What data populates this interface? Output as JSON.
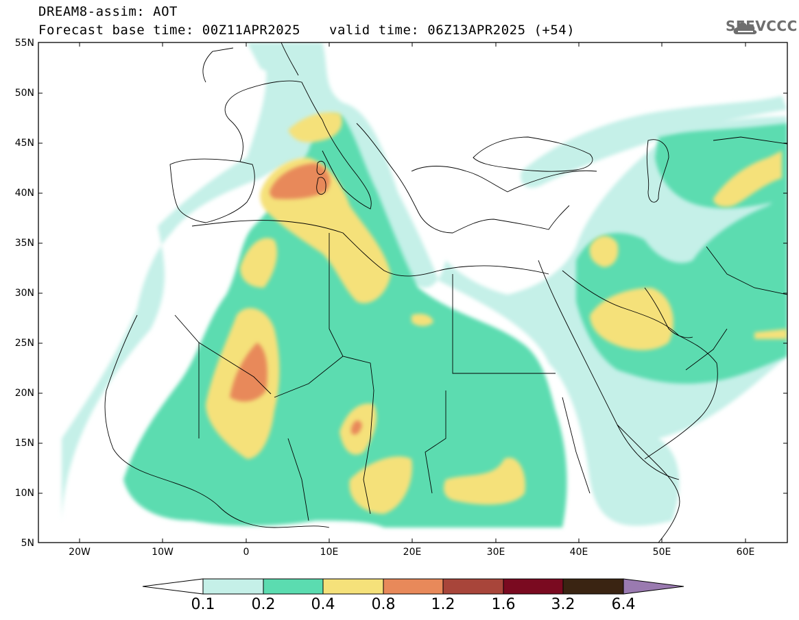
{
  "header": {
    "title": "DREAM8-assim: AOT",
    "base_time": "Forecast base time: 00Z11APR2025",
    "valid_time": "valid time: 06Z13APR2025 (+54)"
  },
  "logo": {
    "text": "SEEVCCC",
    "icon": "cloud-icon",
    "color": "#6e6e6e"
  },
  "map": {
    "lat_labels": [
      "55N",
      "50N",
      "45N",
      "40N",
      "35N",
      "30N",
      "25N",
      "20N",
      "15N",
      "10N",
      "5N"
    ],
    "lon_labels": [
      "20W",
      "10W",
      "0",
      "10E",
      "20E",
      "30E",
      "40E",
      "50E",
      "60E"
    ]
  },
  "colorbar": {
    "labels": [
      "0.1",
      "0.2",
      "0.4",
      "0.8",
      "1.2",
      "1.6",
      "3.2",
      "6.4"
    ],
    "colors": [
      "#ffffff",
      "#c5f0e8",
      "#5bdcb0",
      "#f5e17a",
      "#e8895a",
      "#a8453a",
      "#7a0a20",
      "#3a2412",
      "#9a7ab0"
    ]
  }
}
